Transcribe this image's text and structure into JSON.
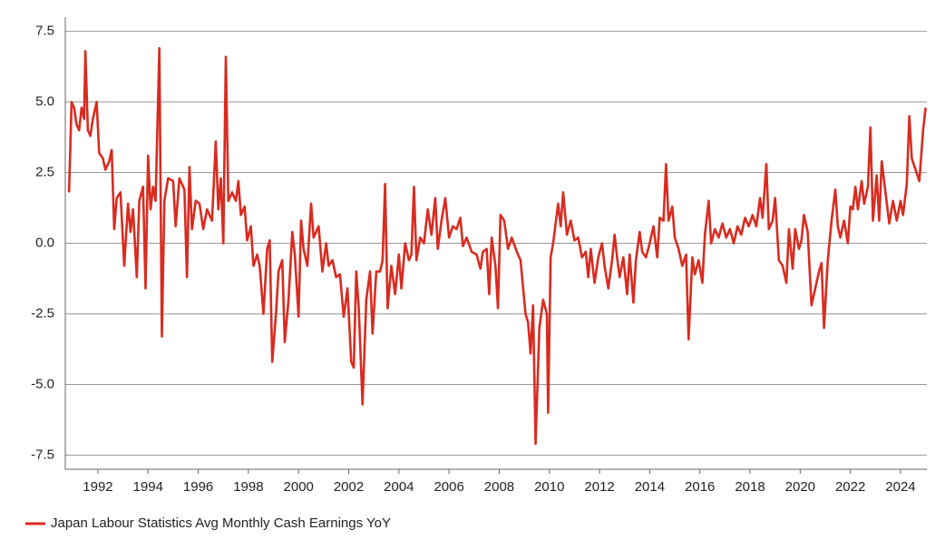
{
  "chart_data": {
    "type": "line",
    "x": [
      1990.85,
      1990.95,
      1991.05,
      1991.15,
      1991.25,
      1991.35,
      1991.45,
      1991.5,
      1991.6,
      1991.7,
      1991.8,
      1991.95,
      1992.05,
      1992.2,
      1992.3,
      1992.45,
      1992.55,
      1992.65,
      1992.75,
      1992.9,
      1993.05,
      1993.2,
      1993.3,
      1993.4,
      1993.55,
      1993.65,
      1993.8,
      1993.9,
      1994.0,
      1994.1,
      1994.2,
      1994.3,
      1994.45,
      1994.55,
      1994.65,
      1994.8,
      1995.0,
      1995.1,
      1995.25,
      1995.45,
      1995.55,
      1995.65,
      1995.75,
      1995.9,
      1996.05,
      1996.2,
      1996.35,
      1996.55,
      1996.7,
      1996.8,
      1996.9,
      1997.0,
      1997.1,
      1997.2,
      1997.35,
      1997.5,
      1997.6,
      1997.7,
      1997.85,
      1997.95,
      1998.1,
      1998.2,
      1998.35,
      1998.45,
      1998.6,
      1998.75,
      1998.85,
      1998.95,
      1999.1,
      1999.2,
      1999.35,
      1999.45,
      1999.6,
      1999.75,
      1999.85,
      2000.0,
      2000.1,
      2000.2,
      2000.35,
      2000.5,
      2000.6,
      2000.8,
      2000.95,
      2001.1,
      2001.2,
      2001.35,
      2001.5,
      2001.65,
      2001.8,
      2001.95,
      2002.1,
      2002.2,
      2002.3,
      2002.4,
      2002.55,
      2002.7,
      2002.85,
      2002.95,
      2003.1,
      2003.25,
      2003.35,
      2003.45,
      2003.55,
      2003.7,
      2003.85,
      2004.0,
      2004.1,
      2004.25,
      2004.4,
      2004.5,
      2004.6,
      2004.7,
      2004.85,
      2005.0,
      2005.15,
      2005.3,
      2005.45,
      2005.55,
      2005.7,
      2005.85,
      2006.0,
      2006.15,
      2006.3,
      2006.45,
      2006.55,
      2006.7,
      2006.9,
      2007.1,
      2007.25,
      2007.35,
      2007.5,
      2007.6,
      2007.7,
      2007.85,
      2007.95,
      2008.05,
      2008.2,
      2008.35,
      2008.5,
      2008.7,
      2008.85,
      2009.05,
      2009.15,
      2009.25,
      2009.35,
      2009.45,
      2009.6,
      2009.75,
      2009.9,
      2009.95,
      2010.05,
      2010.15,
      2010.35,
      2010.45,
      2010.55,
      2010.7,
      2010.85,
      2011.0,
      2011.15,
      2011.3,
      2011.45,
      2011.55,
      2011.65,
      2011.8,
      2011.95,
      2012.1,
      2012.2,
      2012.35,
      2012.5,
      2012.6,
      2012.7,
      2012.8,
      2012.95,
      2013.1,
      2013.2,
      2013.35,
      2013.45,
      2013.6,
      2013.7,
      2013.85,
      2014.0,
      2014.15,
      2014.3,
      2014.4,
      2014.55,
      2014.65,
      2014.75,
      2014.9,
      2015.0,
      2015.15,
      2015.3,
      2015.45,
      2015.55,
      2015.7,
      2015.8,
      2015.95,
      2016.1,
      2016.2,
      2016.35,
      2016.45,
      2016.6,
      2016.75,
      2016.9,
      2017.05,
      2017.2,
      2017.35,
      2017.5,
      2017.65,
      2017.8,
      2017.95,
      2018.1,
      2018.25,
      2018.4,
      2018.5,
      2018.65,
      2018.75,
      2018.9,
      2019.0,
      2019.15,
      2019.3,
      2019.45,
      2019.55,
      2019.7,
      2019.8,
      2019.95,
      2020.05,
      2020.15,
      2020.3,
      2020.45,
      2020.6,
      2020.75,
      2020.85,
      2020.95,
      2021.1,
      2021.25,
      2021.4,
      2021.5,
      2021.6,
      2021.75,
      2021.9,
      2022.0,
      2022.1,
      2022.2,
      2022.3,
      2022.45,
      2022.55,
      2022.7,
      2022.8,
      2022.9,
      2023.05,
      2023.15,
      2023.25,
      2023.4,
      2023.55,
      2023.7,
      2023.85,
      2024.0,
      2024.1,
      2024.25,
      2024.35,
      2024.45,
      2024.6,
      2024.75,
      2024.9,
      2025.0
    ],
    "series": [
      {
        "name": "Japan Labour Statistics Avg Monthly Cash Earnings YoY",
        "color": "#d92b20",
        "values": [
          1.8,
          5.0,
          4.8,
          4.2,
          4.0,
          4.8,
          4.4,
          6.8,
          4.0,
          3.8,
          4.4,
          5.0,
          3.2,
          3.0,
          2.6,
          2.9,
          3.3,
          0.5,
          1.6,
          1.8,
          -0.8,
          1.4,
          0.4,
          1.2,
          -1.2,
          1.5,
          2.0,
          -1.6,
          3.1,
          1.2,
          2.0,
          1.5,
          6.9,
          -3.3,
          1.5,
          2.3,
          2.2,
          0.6,
          2.3,
          1.9,
          -1.2,
          2.7,
          0.5,
          1.5,
          1.4,
          0.5,
          1.2,
          0.8,
          3.6,
          1.2,
          2.3,
          0.0,
          6.6,
          1.5,
          1.8,
          1.5,
          2.2,
          1.0,
          1.3,
          0.1,
          0.6,
          -0.8,
          -0.4,
          -0.8,
          -2.5,
          -0.2,
          0.1,
          -4.2,
          -2.5,
          -1.0,
          -0.6,
          -3.5,
          -2.0,
          0.4,
          -0.4,
          -2.6,
          0.8,
          -0.2,
          -0.8,
          1.4,
          0.2,
          0.6,
          -1.0,
          0.0,
          -0.8,
          -0.6,
          -1.2,
          -1.1,
          -2.6,
          -1.6,
          -4.2,
          -4.4,
          -1.0,
          -2.3,
          -5.7,
          -2.0,
          -1.0,
          -3.2,
          -1.0,
          -1.0,
          -0.6,
          2.1,
          -2.3,
          -0.8,
          -1.8,
          -0.4,
          -1.6,
          0.0,
          -0.6,
          -0.4,
          2.0,
          -0.6,
          0.2,
          0.0,
          1.2,
          0.3,
          1.6,
          -0.2,
          0.8,
          1.6,
          0.2,
          0.6,
          0.5,
          0.9,
          -0.1,
          0.2,
          -0.3,
          -0.4,
          -0.9,
          -0.3,
          -0.2,
          -1.8,
          0.2,
          -0.8,
          -2.3,
          1.0,
          0.8,
          -0.2,
          0.2,
          -0.3,
          -0.6,
          -2.5,
          -2.8,
          -3.9,
          -2.2,
          -7.1,
          -3.0,
          -2.0,
          -2.5,
          -6.0,
          -0.5,
          0.0,
          1.4,
          0.6,
          1.8,
          0.3,
          0.8,
          0.1,
          0.2,
          -0.5,
          -0.3,
          -1.2,
          -0.2,
          -1.4,
          -0.5,
          0.0,
          -0.8,
          -1.6,
          -0.6,
          0.3,
          -0.5,
          -1.2,
          -0.5,
          -1.8,
          -0.4,
          -2.1,
          -0.6,
          0.4,
          -0.3,
          -0.5,
          0.0,
          0.6,
          -0.5,
          0.9,
          0.8,
          2.8,
          0.8,
          1.3,
          0.2,
          -0.2,
          -0.8,
          -0.4,
          -3.4,
          -0.5,
          -1.1,
          -0.6,
          -1.4,
          0.3,
          1.5,
          0.0,
          0.5,
          0.2,
          0.7,
          0.2,
          0.5,
          0.0,
          0.6,
          0.3,
          0.9,
          0.6,
          1.0,
          0.6,
          1.6,
          0.9,
          2.8,
          0.5,
          0.8,
          1.6,
          -0.6,
          -0.8,
          -1.4,
          0.5,
          -0.9,
          0.5,
          -0.2,
          0.1,
          1.0,
          0.4,
          -2.2,
          -1.6,
          -1.0,
          -0.7,
          -3.0,
          -0.6,
          0.8,
          1.9,
          0.6,
          0.2,
          0.8,
          0.0,
          1.3,
          1.2,
          2.0,
          1.2,
          2.2,
          1.4,
          2.0,
          4.1,
          0.8,
          2.4,
          0.8,
          2.9,
          1.8,
          0.7,
          1.5,
          0.8,
          1.5,
          1.0,
          2.1,
          4.5,
          3.0,
          2.6,
          2.2,
          4.0,
          4.8
        ]
      }
    ],
    "xlim": [
      1990.7,
      2025.05
    ],
    "xticks": [
      1992,
      1994,
      1996,
      1998,
      2000,
      2002,
      2004,
      2006,
      2008,
      2010,
      2012,
      2014,
      2016,
      2018,
      2020,
      2022,
      2024
    ],
    "ylim": [
      -8,
      8
    ],
    "yticks": [
      7.5,
      {
        "value": 5,
        "label": "5.0"
      },
      2.5,
      {
        "value": 0,
        "label": "0.0"
      },
      -2.5,
      {
        "value": -5,
        "label": "-5.0"
      },
      -7.5
    ],
    "grid": true,
    "legend": "bottom"
  }
}
